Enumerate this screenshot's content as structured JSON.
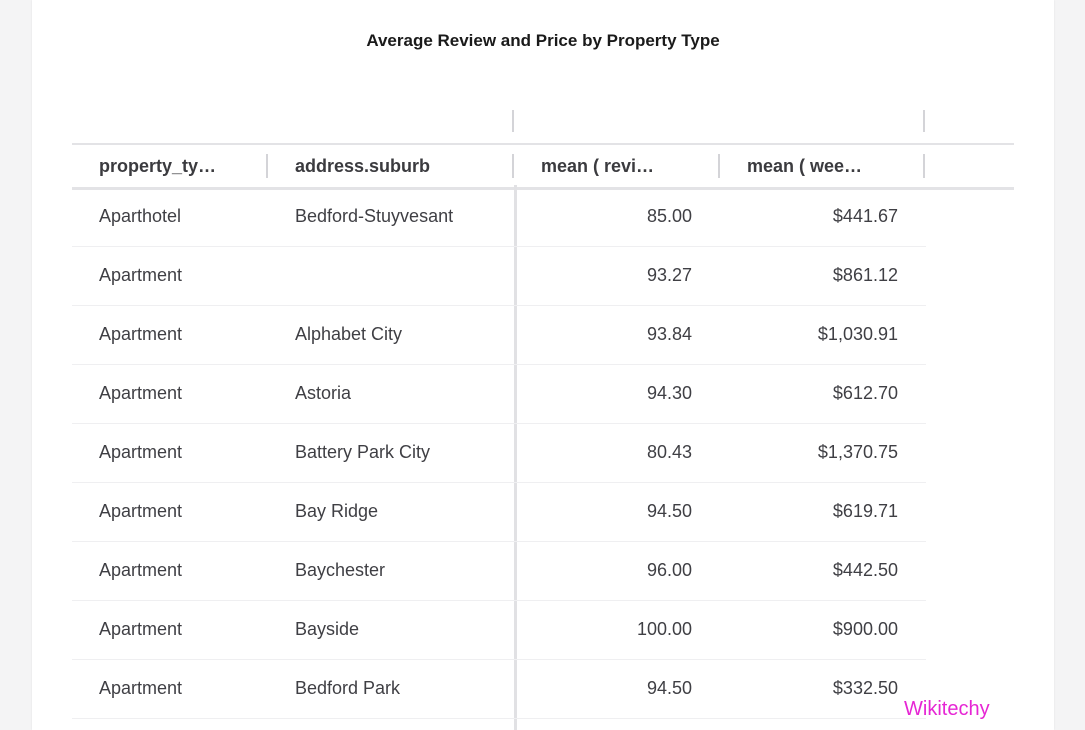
{
  "title": "Average Review and Price by Property Type",
  "table": {
    "columns": [
      "property_ty…",
      "address.suburb",
      "mean ( revi…",
      "mean ( wee…"
    ],
    "rows": [
      [
        "Aparthotel",
        "Bedford-Stuyvesant",
        "85.00",
        "$441.67"
      ],
      [
        "Apartment",
        "",
        "93.27",
        "$861.12"
      ],
      [
        "Apartment",
        "Alphabet City",
        "93.84",
        "$1,030.91"
      ],
      [
        "Apartment",
        "Astoria",
        "94.30",
        "$612.70"
      ],
      [
        "Apartment",
        "Battery Park City",
        "80.43",
        "$1,370.75"
      ],
      [
        "Apartment",
        "Bay Ridge",
        "94.50",
        "$619.71"
      ],
      [
        "Apartment",
        "Baychester",
        "96.00",
        "$442.50"
      ],
      [
        "Apartment",
        "Bayside",
        "100.00",
        "$900.00"
      ],
      [
        "Apartment",
        "Bedford Park",
        "94.50",
        "$332.50"
      ]
    ]
  },
  "watermark": "Wikitechy"
}
